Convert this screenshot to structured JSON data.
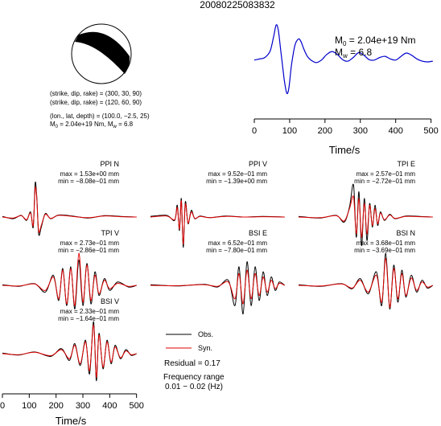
{
  "figure": {
    "title": "20080225083832",
    "mechanism": {
      "plane1": "(strike, dip, rake) = (300, 30, 90)",
      "plane2": "(strike, dip, rake) = (120, 60, 90)",
      "location": "(lon., lat, depth) = (100.0, −2.5, 25)",
      "moment_prefix": "M",
      "moment_sub": "0",
      "moment_value": " = 2.04e+19 Nm, M",
      "magnitude_sub": "w",
      "magnitude_value": " = 6.8"
    },
    "stf": {
      "m0_prefix": "M",
      "m0_sub": "0",
      "m0_value": " = 2.04e+19 Nm",
      "mw_prefix": "M",
      "mw_sub": "w",
      "mw_value": " = 6.8"
    },
    "legend": {
      "obs_label": "Obs.",
      "syn_label": "Syn.",
      "residual": "Residual = 0.17",
      "freq_line1": "Frequency range",
      "freq_line2": "0.01 − 0.02 (Hz)"
    },
    "colors": {
      "obs": "#000000",
      "syn": "#e00000",
      "stf": "#0000cc"
    }
  },
  "chart_data": [
    {
      "type": "line",
      "id": "source-time-function",
      "xlabel": "Time/s",
      "xlim": [
        0,
        510
      ],
      "xticks": [
        0,
        100,
        200,
        300,
        400,
        500
      ],
      "series": [
        {
          "x": [
            0,
            15,
            30,
            45,
            55,
            62,
            68,
            75,
            85,
            92,
            98,
            105,
            115,
            125,
            132,
            140,
            150,
            160,
            175,
            190,
            205,
            220,
            235,
            250,
            265,
            280,
            295,
            310,
            325,
            340,
            355,
            370,
            385,
            400,
            415,
            430,
            445,
            460,
            475,
            490,
            505
          ],
          "y": [
            0.05,
            0.08,
            0.12,
            0.3,
            0.7,
            1.0,
            0.85,
            0.3,
            -0.5,
            -0.85,
            -0.7,
            -0.1,
            0.45,
            0.62,
            0.55,
            0.35,
            0.15,
            0.05,
            -0.02,
            0.05,
            0.2,
            0.28,
            0.2,
            0.06,
            0.02,
            0.12,
            0.25,
            0.18,
            0.06,
            0.05,
            0.12,
            0.15,
            0.08,
            0.05,
            0.15,
            0.24,
            0.18,
            0.08,
            0.02,
            0.0,
            0.02
          ]
        }
      ]
    },
    {
      "type": "line",
      "id": "station-ppi-n",
      "station": "PPI N",
      "max": "max = 1.53e+00 mm",
      "min": "min = −8.08e−01 mm",
      "series": [
        {
          "name": "Obs.",
          "x": [
            0,
            40,
            70,
            90,
            105,
            115,
            122,
            128,
            135,
            145,
            160,
            180,
            210,
            260,
            320,
            380,
            440,
            500
          ],
          "y": [
            0.02,
            -0.05,
            0.05,
            -0.1,
            0.15,
            -0.3,
            1.0,
            0.6,
            -0.5,
            -0.3,
            0.1,
            -0.05,
            0.06,
            0.03,
            -0.03,
            0.04,
            0.02,
            0.0
          ]
        },
        {
          "name": "Syn.",
          "x": [
            0,
            40,
            70,
            90,
            105,
            115,
            122,
            128,
            135,
            145,
            160,
            180,
            210,
            260,
            320,
            380,
            440,
            500
          ],
          "y": [
            0.0,
            -0.03,
            0.04,
            -0.08,
            0.12,
            -0.25,
            0.85,
            0.55,
            -0.42,
            -0.25,
            0.08,
            -0.04,
            0.05,
            0.02,
            -0.02,
            0.03,
            0.01,
            0.0
          ]
        }
      ]
    },
    {
      "type": "line",
      "id": "station-ppi-v",
      "station": "PPI V",
      "max": "max = 9.52e−01 mm",
      "min": "min = −1.39e+00 mm",
      "series": [
        {
          "name": "Obs.",
          "x": [
            0,
            60,
            90,
            100,
            108,
            115,
            122,
            130,
            140,
            152,
            165,
            185,
            220,
            280,
            350,
            420,
            500
          ],
          "y": [
            0.02,
            0.05,
            -0.1,
            0.35,
            -0.4,
            0.55,
            -0.9,
            0.45,
            -0.2,
            0.2,
            -0.05,
            0.03,
            -0.02,
            0.03,
            0.0,
            0.02,
            0.0
          ]
        },
        {
          "name": "Syn.",
          "x": [
            0,
            60,
            90,
            100,
            108,
            115,
            122,
            130,
            140,
            152,
            165,
            185,
            220,
            280,
            350,
            420,
            500
          ],
          "y": [
            0.0,
            0.03,
            -0.08,
            0.28,
            -0.35,
            0.48,
            -0.8,
            0.38,
            -0.18,
            0.15,
            -0.04,
            0.02,
            -0.02,
            0.02,
            0.0,
            0.01,
            0.0
          ]
        }
      ]
    },
    {
      "type": "line",
      "id": "station-tpi-e",
      "station": "TPI E",
      "max": "max = 2.57e−01 mm",
      "min": "min = −2.72e−01 mm",
      "series": [
        {
          "name": "Obs.",
          "x": [
            0,
            80,
            140,
            170,
            190,
            205,
            215,
            225,
            235,
            245,
            255,
            265,
            275,
            285,
            295,
            305,
            320,
            340,
            360,
            400,
            450,
            500
          ],
          "y": [
            0.02,
            -0.03,
            0.05,
            -0.15,
            0.3,
            0.95,
            -0.6,
            0.75,
            -0.85,
            0.55,
            -0.7,
            0.4,
            -0.3,
            0.35,
            -0.25,
            0.15,
            -0.1,
            0.08,
            -0.05,
            0.03,
            0.02,
            0.0
          ]
        },
        {
          "name": "Syn.",
          "x": [
            0,
            80,
            140,
            170,
            190,
            205,
            215,
            225,
            235,
            245,
            255,
            265,
            275,
            285,
            295,
            305,
            320,
            340,
            360,
            400,
            450,
            500
          ],
          "y": [
            0.0,
            -0.02,
            0.04,
            -0.12,
            0.25,
            0.6,
            -0.5,
            0.55,
            -0.6,
            0.4,
            -0.5,
            0.35,
            -0.25,
            0.25,
            -0.2,
            0.12,
            -0.08,
            0.06,
            -0.04,
            0.02,
            0.01,
            0.0
          ]
        }
      ]
    },
    {
      "type": "line",
      "id": "station-tpi-v",
      "station": "TPI V",
      "max": "max = 2.73e−01 mm",
      "min": "min = −2.86e−01 mm",
      "series": [
        {
          "name": "Obs.",
          "x": [
            0,
            60,
            120,
            160,
            190,
            210,
            225,
            240,
            255,
            270,
            285,
            300,
            315,
            330,
            345,
            360,
            380,
            400,
            430,
            470,
            500
          ],
          "y": [
            0.02,
            -0.03,
            0.05,
            -0.2,
            0.3,
            -0.45,
            0.5,
            -0.6,
            0.55,
            -0.7,
            0.75,
            -0.6,
            0.65,
            -0.55,
            0.4,
            -0.3,
            0.2,
            -0.15,
            0.1,
            -0.05,
            0.0
          ]
        },
        {
          "name": "Syn.",
          "x": [
            0,
            60,
            120,
            160,
            190,
            210,
            225,
            240,
            255,
            270,
            285,
            300,
            315,
            330,
            345,
            360,
            380,
            400,
            430,
            470,
            500
          ],
          "y": [
            0.0,
            -0.02,
            0.04,
            -0.15,
            0.25,
            -0.4,
            0.45,
            -0.55,
            0.5,
            -0.6,
            0.95,
            -0.5,
            0.6,
            -0.45,
            0.3,
            -0.25,
            0.15,
            -0.1,
            0.06,
            -0.03,
            0.0
          ]
        }
      ]
    },
    {
      "type": "line",
      "id": "station-bsi-e",
      "station": "BSI E",
      "max": "max = 6.52e−01 mm",
      "min": "min = −7.80e−01 mm",
      "series": [
        {
          "name": "Obs.",
          "x": [
            0,
            100,
            200,
            250,
            290,
            315,
            330,
            345,
            360,
            375,
            390,
            405,
            420,
            435,
            450,
            465,
            480,
            500
          ],
          "y": [
            0.02,
            -0.02,
            0.03,
            -0.05,
            0.15,
            -0.6,
            0.55,
            -0.85,
            0.7,
            -0.6,
            0.55,
            -0.45,
            0.4,
            -0.3,
            0.25,
            -0.15,
            0.1,
            0.0
          ]
        },
        {
          "name": "Syn.",
          "x": [
            0,
            100,
            200,
            250,
            290,
            315,
            330,
            345,
            360,
            375,
            390,
            405,
            420,
            435,
            450,
            465,
            480,
            500
          ],
          "y": [
            0.0,
            -0.01,
            0.02,
            -0.03,
            0.1,
            -0.4,
            0.35,
            -0.55,
            0.45,
            -0.4,
            0.35,
            -0.3,
            0.25,
            -0.2,
            0.15,
            -0.1,
            0.06,
            0.0
          ]
        }
      ]
    },
    {
      "type": "line",
      "id": "station-bsi-n",
      "station": "BSI N",
      "max": "max = 3.68e−01 mm",
      "min": "min = −3.69e−01 mm",
      "series": [
        {
          "name": "Obs.",
          "x": [
            0,
            80,
            160,
            200,
            230,
            260,
            290,
            310,
            325,
            340,
            355,
            370,
            385,
            400,
            420,
            440,
            460,
            480,
            500
          ],
          "y": [
            0.02,
            -0.03,
            0.05,
            -0.1,
            0.2,
            -0.25,
            0.4,
            -0.6,
            0.95,
            -0.7,
            0.6,
            -0.5,
            0.45,
            -0.35,
            0.3,
            -0.2,
            0.15,
            -0.08,
            0.0
          ]
        },
        {
          "name": "Syn.",
          "x": [
            0,
            80,
            160,
            200,
            230,
            260,
            290,
            310,
            325,
            340,
            355,
            370,
            385,
            400,
            420,
            440,
            460,
            480,
            500
          ],
          "y": [
            0.0,
            -0.02,
            0.04,
            -0.08,
            0.15,
            -0.2,
            0.3,
            -0.5,
            0.8,
            -0.65,
            0.5,
            -0.4,
            0.35,
            -0.3,
            0.22,
            -0.15,
            0.1,
            -0.05,
            0.0
          ]
        }
      ]
    },
    {
      "type": "line",
      "id": "station-bsi-v",
      "station": "BSI V",
      "max": "max = 2.33e−01 mm",
      "min": "min = −1.64e−01 mm",
      "xlabel": "Time/s",
      "xlim": [
        0,
        510
      ],
      "xticks": [
        0,
        100,
        200,
        300,
        400,
        500
      ],
      "series": [
        {
          "name": "Obs.",
          "x": [
            0,
            60,
            120,
            180,
            220,
            250,
            270,
            290,
            310,
            325,
            340,
            350,
            360,
            375,
            390,
            405,
            420,
            440,
            460,
            480,
            500
          ],
          "y": [
            0.02,
            -0.04,
            0.05,
            -0.08,
            0.15,
            -0.2,
            0.3,
            -0.35,
            0.4,
            -0.6,
            0.95,
            -0.8,
            0.6,
            -0.45,
            0.4,
            -0.3,
            0.25,
            -0.15,
            0.12,
            -0.05,
            0.0
          ]
        },
        {
          "name": "Syn.",
          "x": [
            0,
            60,
            120,
            180,
            220,
            250,
            270,
            290,
            310,
            325,
            340,
            350,
            360,
            375,
            390,
            405,
            420,
            440,
            460,
            480,
            500
          ],
          "y": [
            0.0,
            -0.03,
            0.04,
            -0.06,
            0.12,
            -0.15,
            0.25,
            -0.3,
            0.35,
            -0.5,
            0.85,
            -0.7,
            0.55,
            -0.4,
            0.35,
            -0.25,
            0.2,
            -0.12,
            0.08,
            -0.03,
            0.0
          ]
        }
      ]
    }
  ]
}
